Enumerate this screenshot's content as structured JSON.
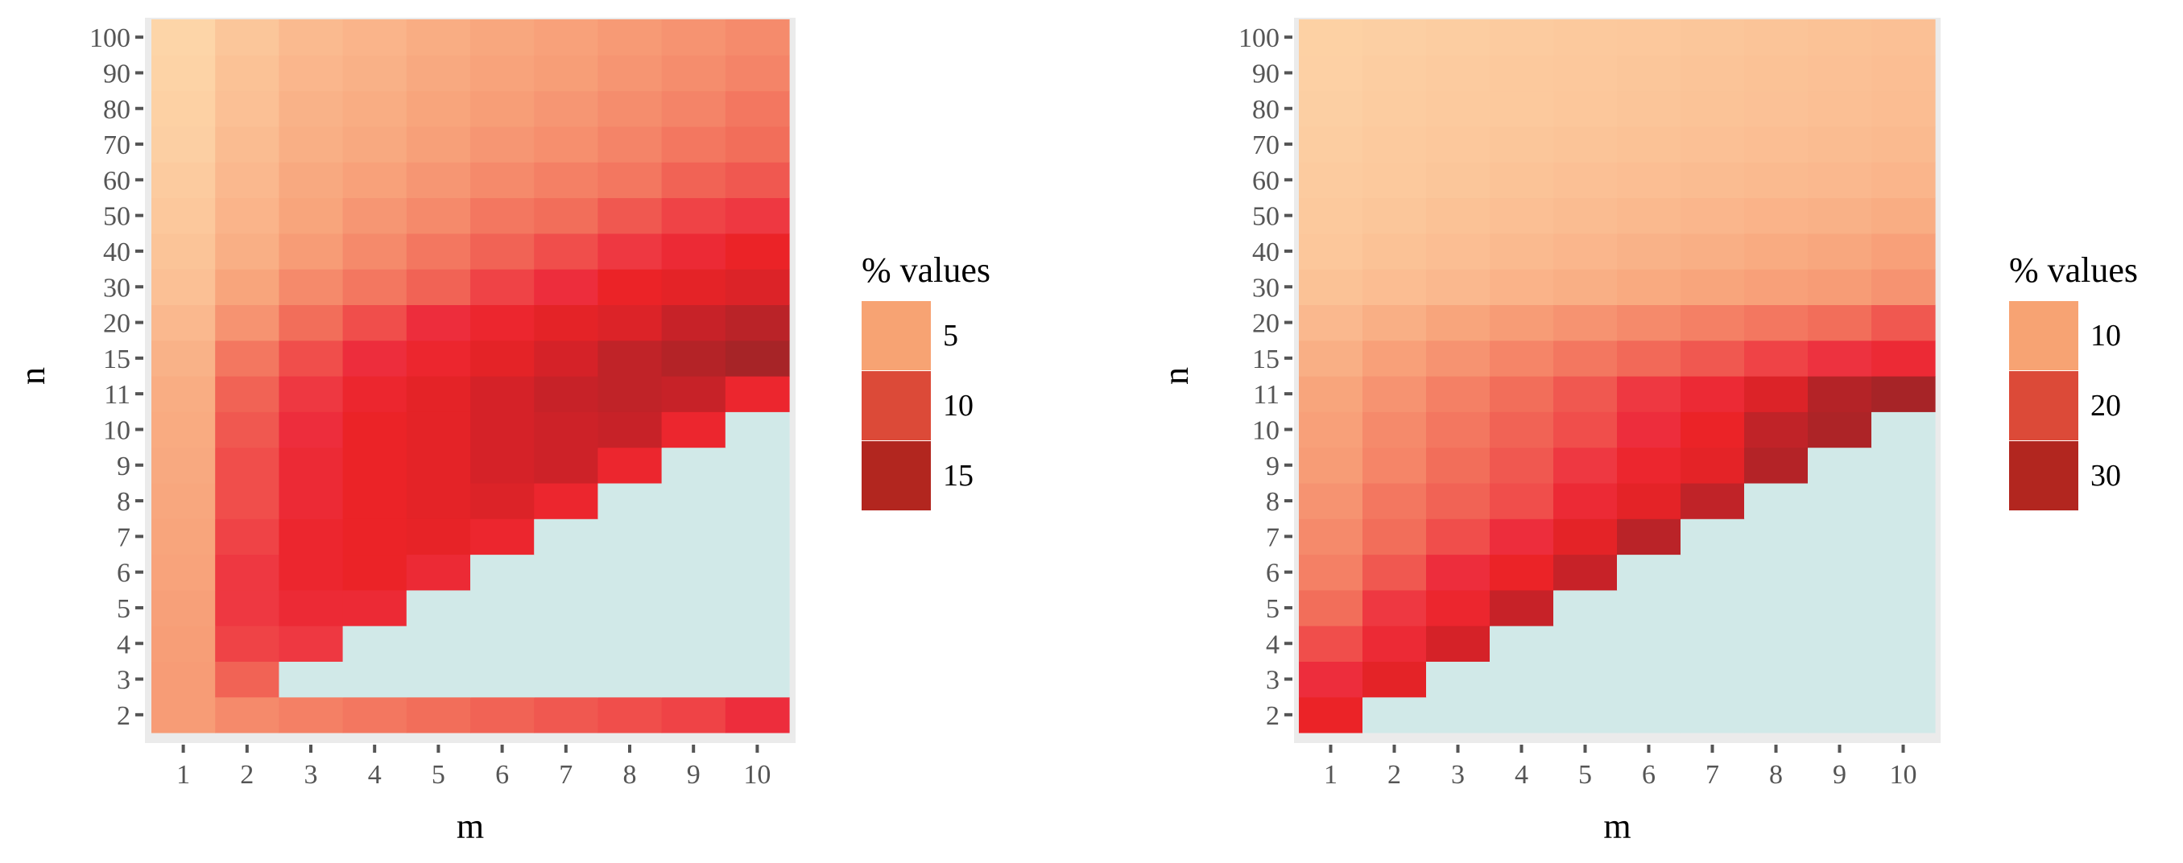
{
  "chart_data": [
    {
      "type": "heatmap",
      "title": "",
      "xlabel": "m",
      "ylabel": "n",
      "x_categories": [
        "1",
        "2",
        "3",
        "4",
        "5",
        "6",
        "7",
        "8",
        "9",
        "10"
      ],
      "y_categories": [
        "2",
        "3",
        "4",
        "5",
        "6",
        "7",
        "8",
        "9",
        "10",
        "11",
        "15",
        "20",
        "30",
        "40",
        "50",
        "60",
        "70",
        "80",
        "90",
        "100"
      ],
      "legend": {
        "title": "% values",
        "placement": "right",
        "entries": [
          {
            "label": "5",
            "color": "#f7a373"
          },
          {
            "label": "10",
            "color": "#dc4a38"
          },
          {
            "label": "15",
            "color": "#b2261f"
          }
        ]
      },
      "color_scale": {
        "stops": [
          {
            "value": 0.5,
            "color": "#fdd5a8"
          },
          {
            "value": 3.0,
            "color": "#f8a57c"
          },
          {
            "value": 6.0,
            "color": "#f26e5a"
          },
          {
            "value": 9.0,
            "color": "#ed2d3c"
          },
          {
            "value": 10.5,
            "color": "#eb2327"
          },
          {
            "value": 12.5,
            "color": "#cd2228"
          },
          {
            "value": 15.5,
            "color": "#a72427"
          }
        ]
      },
      "missing_color": "#d1e9e8",
      "panel_background": "#ebebeb",
      "values": [
        [
          3.5,
          4.5,
          5,
          5.5,
          6,
          6.5,
          7,
          7.5,
          8,
          9
        ],
        [
          3.5,
          6.5,
          null,
          null,
          null,
          null,
          null,
          null,
          null,
          null
        ],
        [
          3.4,
          8,
          8.5,
          null,
          null,
          null,
          null,
          null,
          null,
          null
        ],
        [
          3.3,
          8.5,
          9.5,
          9.5,
          null,
          null,
          null,
          null,
          null,
          null
        ],
        [
          3.1,
          8.5,
          10,
          10.5,
          9.5,
          null,
          null,
          null,
          null,
          null
        ],
        [
          3,
          8,
          10,
          10.5,
          10.8,
          10,
          null,
          null,
          null,
          null
        ],
        [
          2.9,
          7.5,
          9.5,
          10.5,
          11,
          11.5,
          10,
          null,
          null,
          null
        ],
        [
          2.8,
          7.5,
          9.5,
          10.5,
          11,
          12,
          12.5,
          10,
          null,
          null
        ],
        [
          2.7,
          7,
          9,
          10.5,
          11,
          12,
          12.5,
          13,
          10,
          null
        ],
        [
          2.6,
          6.5,
          8.5,
          10,
          11,
          12,
          13,
          13.5,
          13,
          10
        ],
        [
          2.3,
          5.5,
          7.5,
          9,
          10,
          11,
          12,
          13.5,
          14.5,
          15.5
        ],
        [
          2,
          4,
          6,
          7.5,
          9,
          10,
          11,
          11.5,
          13,
          14
        ],
        [
          1.6,
          3,
          4.5,
          5.5,
          6.5,
          8,
          9,
          10.5,
          11,
          11.5
        ],
        [
          1.4,
          2.5,
          3.5,
          4.5,
          5.5,
          6.5,
          7.5,
          8.5,
          9.5,
          10.5
        ],
        [
          1.2,
          2.2,
          3,
          3.8,
          4.5,
          5.5,
          6,
          7,
          8,
          8.5
        ],
        [
          1,
          2,
          2.8,
          3.2,
          3.8,
          4.5,
          5,
          5.5,
          6.5,
          7
        ],
        [
          0.8,
          1.8,
          2.5,
          2.8,
          3.3,
          3.8,
          4.2,
          4.8,
          5.5,
          6
        ],
        [
          0.7,
          1.6,
          2.3,
          2.6,
          3,
          3.4,
          3.8,
          4.3,
          4.8,
          5.5
        ],
        [
          0.6,
          1.5,
          2.1,
          2.4,
          2.8,
          3.1,
          3.4,
          3.9,
          4.3,
          4.8
        ],
        [
          0.5,
          1.3,
          1.9,
          2.2,
          2.6,
          2.9,
          3.2,
          3.6,
          4,
          4.4
        ]
      ]
    },
    {
      "type": "heatmap",
      "title": "",
      "xlabel": "m",
      "ylabel": "n",
      "x_categories": [
        "1",
        "2",
        "3",
        "4",
        "5",
        "6",
        "7",
        "8",
        "9",
        "10"
      ],
      "y_categories": [
        "2",
        "3",
        "4",
        "5",
        "6",
        "7",
        "8",
        "9",
        "10",
        "11",
        "15",
        "20",
        "30",
        "40",
        "50",
        "60",
        "70",
        "80",
        "90",
        "100"
      ],
      "legend": {
        "title": "% values",
        "placement": "right",
        "entries": [
          {
            "label": "10",
            "color": "#f7a373"
          },
          {
            "label": "20",
            "color": "#dc4a38"
          },
          {
            "label": "30",
            "color": "#b2261f"
          }
        ]
      },
      "color_scale": {
        "stops": [
          {
            "value": 1,
            "color": "#fdd5a8"
          },
          {
            "value": 6,
            "color": "#f8a57c"
          },
          {
            "value": 12,
            "color": "#f26e5a"
          },
          {
            "value": 18,
            "color": "#ed2d3c"
          },
          {
            "value": 21,
            "color": "#eb2327"
          },
          {
            "value": 25,
            "color": "#cd2228"
          },
          {
            "value": 31,
            "color": "#a72427"
          }
        ]
      },
      "missing_color": "#d1e9e8",
      "panel_background": "#ebebeb",
      "values": [
        [
          21,
          null,
          null,
          null,
          null,
          null,
          null,
          null,
          null,
          null
        ],
        [
          18,
          22,
          null,
          null,
          null,
          null,
          null,
          null,
          null,
          null
        ],
        [
          15,
          19,
          24,
          null,
          null,
          null,
          null,
          null,
          null,
          null
        ],
        [
          12,
          17,
          20,
          26,
          null,
          null,
          null,
          null,
          null,
          null
        ],
        [
          10,
          14,
          18,
          21,
          26,
          null,
          null,
          null,
          null,
          null
        ],
        [
          9,
          12,
          15,
          18,
          22,
          28,
          null,
          null,
          null,
          null
        ],
        [
          8,
          11,
          13,
          15,
          19,
          22,
          27,
          null,
          null,
          null
        ],
        [
          7,
          9.5,
          12,
          14,
          17,
          20,
          22,
          29,
          null,
          null
        ],
        [
          6.5,
          9,
          11,
          13,
          15,
          18,
          21,
          27,
          30,
          null
        ],
        [
          6,
          8,
          10,
          12,
          14,
          17,
          19,
          23,
          29,
          31
        ],
        [
          5,
          6.5,
          8,
          9.5,
          11,
          12.5,
          14,
          16,
          17.5,
          19
        ],
        [
          4,
          5,
          6,
          7,
          8,
          9,
          10,
          11,
          12,
          14
        ],
        [
          3,
          3.5,
          4,
          4.5,
          5,
          5.5,
          6,
          6.5,
          7,
          8
        ],
        [
          2.5,
          3,
          3.4,
          3.8,
          4.2,
          4.6,
          5,
          5.4,
          5.8,
          6.5
        ],
        [
          2.2,
          2.6,
          3,
          3.3,
          3.6,
          3.9,
          4.2,
          4.5,
          4.8,
          5.2
        ],
        [
          2,
          2.3,
          2.6,
          2.9,
          3.2,
          3.4,
          3.6,
          3.8,
          4,
          4.3
        ],
        [
          1.8,
          2.1,
          2.4,
          2.6,
          2.8,
          3,
          3.2,
          3.4,
          3.6,
          3.8
        ],
        [
          1.6,
          1.9,
          2.1,
          2.3,
          2.5,
          2.7,
          2.9,
          3.1,
          3.3,
          3.5
        ],
        [
          1.5,
          1.8,
          2,
          2.2,
          2.4,
          2.6,
          2.8,
          3,
          3.2,
          3.4
        ],
        [
          1.4,
          1.6,
          1.8,
          2,
          2.2,
          2.4,
          2.6,
          2.8,
          3,
          3.2
        ]
      ]
    }
  ]
}
